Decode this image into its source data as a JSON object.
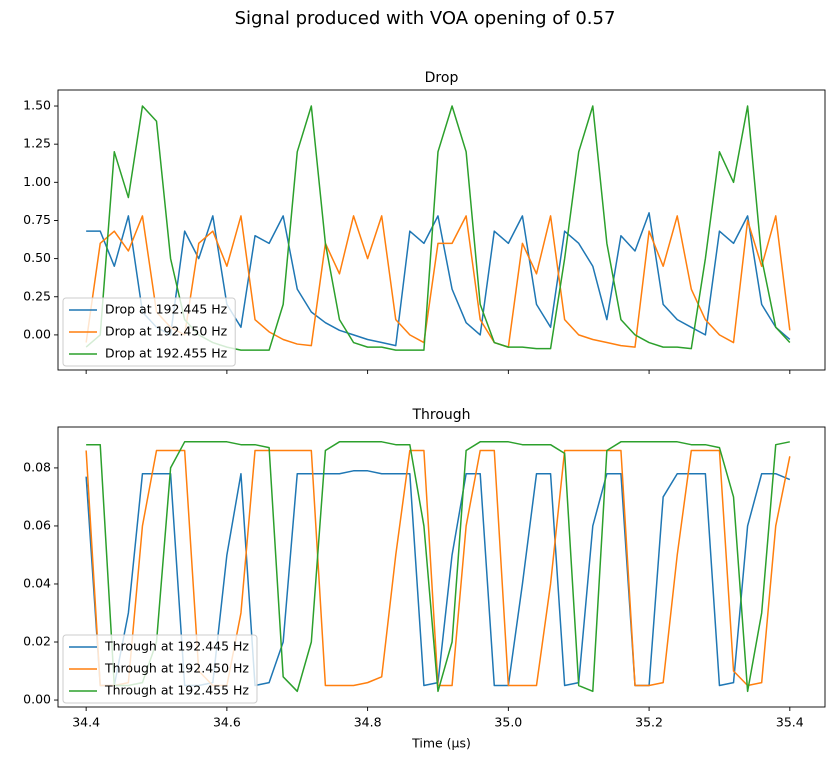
{
  "title": "Signal produced with VOA opening of 0.57",
  "chart_data": [
    {
      "type": "line",
      "title": "Drop",
      "legend": "lower left",
      "xlim": [
        34.36,
        35.45
      ],
      "ylim": [
        -0.23,
        1.605
      ],
      "yticks": [
        {
          "value": 0,
          "label": "0.00"
        },
        {
          "value": 0.25,
          "label": "0.25"
        },
        {
          "value": 0.5,
          "label": "0.50"
        },
        {
          "value": 0.75,
          "label": "0.75"
        },
        {
          "value": 1,
          "label": "1.00"
        },
        {
          "value": 1.25,
          "label": "1.25"
        },
        {
          "value": 1.5,
          "label": "1.50"
        }
      ],
      "x": [
        34.4,
        34.42,
        34.44,
        34.46,
        34.48,
        34.5,
        34.52,
        34.54,
        34.56,
        34.58,
        34.6,
        34.62,
        34.64,
        34.66,
        34.68,
        34.7,
        34.72,
        34.74,
        34.76,
        34.78,
        34.8,
        34.82,
        34.84,
        34.86,
        34.88,
        34.9,
        34.92,
        34.94,
        34.96,
        34.98,
        35.0,
        35.02,
        35.04,
        35.06,
        35.08,
        35.1,
        35.12,
        35.14,
        35.16,
        35.18,
        35.2,
        35.22,
        35.24,
        35.26,
        35.28,
        35.3,
        35.32,
        35.34,
        35.36,
        35.38,
        35.4
      ],
      "series": [
        {
          "name": "Drop at 192.445 Hz",
          "color": "#1f77b4",
          "values": [
            0.68,
            0.68,
            0.45,
            0.78,
            0.15,
            0.05,
            0.0,
            0.68,
            0.5,
            0.78,
            0.2,
            0.05,
            0.65,
            0.6,
            0.78,
            0.3,
            0.15,
            0.08,
            0.03,
            0.0,
            -0.03,
            -0.05,
            -0.07,
            0.68,
            0.6,
            0.78,
            0.3,
            0.08,
            0.0,
            0.68,
            0.6,
            0.78,
            0.2,
            0.05,
            0.68,
            0.6,
            0.45,
            0.1,
            0.65,
            0.55,
            0.8,
            0.2,
            0.1,
            0.05,
            0.0,
            0.68,
            0.6,
            0.78,
            0.2,
            0.05,
            -0.03
          ]
        },
        {
          "name": "Drop at 192.450 Hz",
          "color": "#ff7f0e",
          "values": [
            -0.05,
            0.6,
            0.68,
            0.55,
            0.78,
            0.15,
            0.05,
            0.0,
            0.6,
            0.68,
            0.45,
            0.78,
            0.1,
            0.02,
            -0.03,
            -0.06,
            -0.07,
            0.6,
            0.4,
            0.78,
            0.5,
            0.78,
            0.1,
            0.0,
            -0.05,
            0.6,
            0.6,
            0.78,
            0.1,
            -0.05,
            -0.08,
            0.6,
            0.4,
            0.78,
            0.1,
            0.0,
            -0.03,
            -0.05,
            -0.07,
            -0.08,
            0.68,
            0.45,
            0.78,
            0.3,
            0.1,
            0.0,
            -0.05,
            0.75,
            0.45,
            0.78,
            0.03
          ]
        },
        {
          "name": "Drop at 192.455 Hz",
          "color": "#2ca02c",
          "values": [
            -0.08,
            0.0,
            1.2,
            0.9,
            1.5,
            1.4,
            0.5,
            0.1,
            0.0,
            -0.05,
            -0.08,
            -0.1,
            -0.1,
            -0.1,
            0.2,
            1.2,
            1.5,
            0.6,
            0.1,
            -0.05,
            -0.08,
            -0.08,
            -0.1,
            -0.1,
            -0.1,
            1.2,
            1.5,
            1.2,
            0.2,
            -0.05,
            -0.08,
            -0.08,
            -0.09,
            -0.09,
            0.5,
            1.2,
            1.5,
            0.6,
            0.1,
            0.0,
            -0.05,
            -0.08,
            -0.08,
            -0.09,
            0.5,
            1.2,
            1.0,
            1.5,
            0.5,
            0.05,
            -0.05
          ]
        }
      ]
    },
    {
      "type": "line",
      "title": "Through",
      "xlabel": "Time (μs)",
      "legend": "lower left",
      "xlim": [
        34.36,
        35.45
      ],
      "ylim": [
        -0.0024,
        0.0941
      ],
      "xticks": [
        34.4,
        34.6,
        34.8,
        {
          "value": 35,
          "label": "35.0"
        },
        35.2,
        35.4
      ],
      "yticks": [
        {
          "value": 0,
          "label": "0.00"
        },
        {
          "value": 0.02,
          "label": "0.02"
        },
        {
          "value": 0.04,
          "label": "0.04"
        },
        {
          "value": 0.06,
          "label": "0.06"
        },
        {
          "value": 0.08,
          "label": "0.08"
        }
      ],
      "x": [
        34.4,
        34.42,
        34.44,
        34.46,
        34.48,
        34.5,
        34.52,
        34.54,
        34.56,
        34.58,
        34.6,
        34.62,
        34.64,
        34.66,
        34.68,
        34.7,
        34.72,
        34.74,
        34.76,
        34.78,
        34.8,
        34.82,
        34.84,
        34.86,
        34.88,
        34.9,
        34.92,
        34.94,
        34.96,
        34.98,
        35.0,
        35.02,
        35.04,
        35.06,
        35.08,
        35.1,
        35.12,
        35.14,
        35.16,
        35.18,
        35.2,
        35.22,
        35.24,
        35.26,
        35.28,
        35.3,
        35.32,
        35.34,
        35.36,
        35.38,
        35.4
      ],
      "series": [
        {
          "name": "Through at 192.445 Hz",
          "color": "#1f77b4",
          "values": [
            0.077,
            0.005,
            0.005,
            0.03,
            0.078,
            0.078,
            0.078,
            0.005,
            0.005,
            0.006,
            0.05,
            0.078,
            0.005,
            0.006,
            0.02,
            0.078,
            0.078,
            0.078,
            0.078,
            0.079,
            0.079,
            0.078,
            0.078,
            0.078,
            0.005,
            0.006,
            0.05,
            0.078,
            0.078,
            0.005,
            0.005,
            0.04,
            0.078,
            0.078,
            0.005,
            0.006,
            0.06,
            0.078,
            0.078,
            0.005,
            0.005,
            0.07,
            0.078,
            0.078,
            0.078,
            0.005,
            0.006,
            0.06,
            0.078,
            0.078,
            0.076
          ]
        },
        {
          "name": "Through at 192.450 Hz",
          "color": "#ff7f0e",
          "values": [
            0.086,
            0.005,
            0.005,
            0.006,
            0.06,
            0.086,
            0.086,
            0.086,
            0.01,
            0.005,
            0.005,
            0.03,
            0.086,
            0.086,
            0.086,
            0.086,
            0.086,
            0.005,
            0.005,
            0.005,
            0.006,
            0.008,
            0.05,
            0.086,
            0.086,
            0.005,
            0.005,
            0.06,
            0.086,
            0.086,
            0.005,
            0.005,
            0.005,
            0.04,
            0.086,
            0.086,
            0.086,
            0.086,
            0.086,
            0.005,
            0.005,
            0.006,
            0.05,
            0.086,
            0.086,
            0.086,
            0.01,
            0.005,
            0.006,
            0.06,
            0.084
          ]
        },
        {
          "name": "Through at 192.455 Hz",
          "color": "#2ca02c",
          "values": [
            0.088,
            0.088,
            0.005,
            0.005,
            0.006,
            0.02,
            0.08,
            0.089,
            0.089,
            0.089,
            0.089,
            0.088,
            0.088,
            0.087,
            0.008,
            0.003,
            0.02,
            0.086,
            0.089,
            0.089,
            0.089,
            0.089,
            0.088,
            0.088,
            0.06,
            0.003,
            0.02,
            0.086,
            0.089,
            0.089,
            0.089,
            0.088,
            0.088,
            0.088,
            0.085,
            0.005,
            0.003,
            0.086,
            0.089,
            0.089,
            0.089,
            0.089,
            0.089,
            0.088,
            0.088,
            0.087,
            0.07,
            0.003,
            0.03,
            0.088,
            0.089
          ]
        }
      ]
    }
  ]
}
